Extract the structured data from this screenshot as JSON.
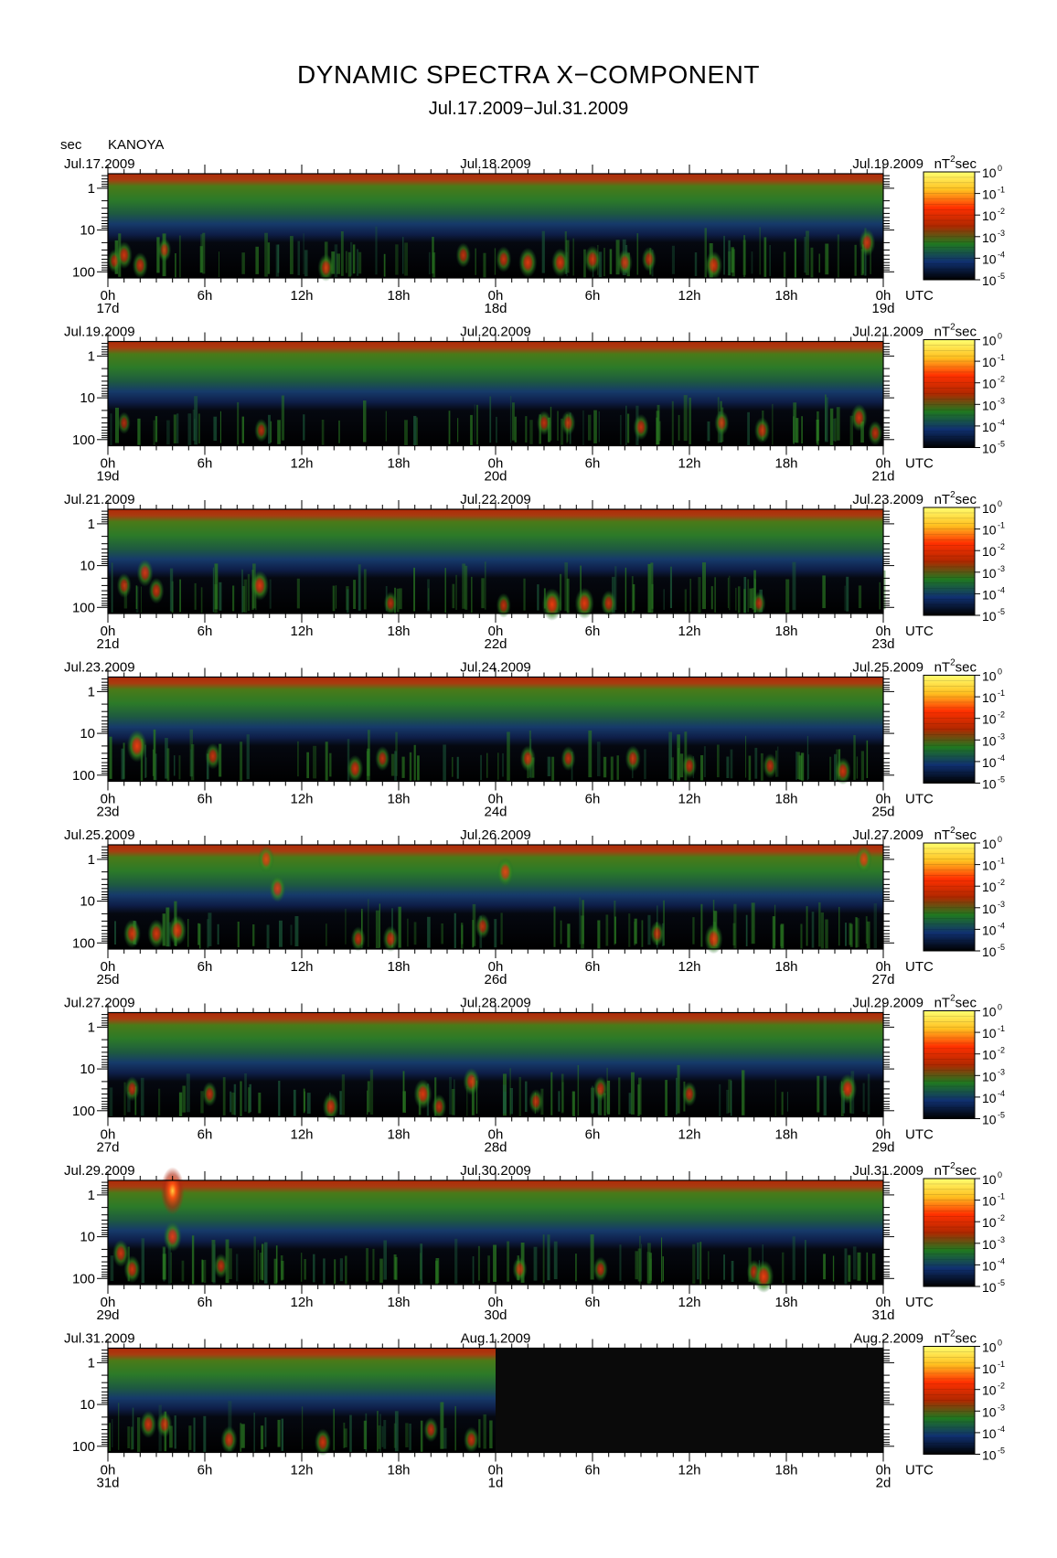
{
  "figure": {
    "title": "DYNAMIC SPECTRA X−COMPONENT",
    "subtitle": "Jul.17.2009−Jul.31.2009",
    "y_unit": "sec",
    "station": "KANOYA",
    "colorbar_unit_base": "nT",
    "colorbar_unit_exp": "2",
    "colorbar_unit_tail": "sec",
    "utc_label": "UTC"
  },
  "chart_data": {
    "type": "heatmap",
    "title": "DYNAMIC SPECTRA X−COMPONENT",
    "subtitle": "Jul.17.2009−Jul.31.2009",
    "ylabel": "sec",
    "y_scale": "log",
    "y_ticks": [
      "1",
      "10",
      "100"
    ],
    "x_ticks": [
      "0h",
      "6h",
      "12h",
      "18h",
      "0h",
      "6h",
      "12h",
      "18h",
      "0h"
    ],
    "colorbar": {
      "label": "nT²sec",
      "scale": "log",
      "ticks": [
        "10",
        "10",
        "10",
        "10",
        "10",
        "10"
      ],
      "tick_exponents": [
        "0",
        "-1",
        "-2",
        "-3",
        "-4",
        "-5"
      ],
      "colors": [
        "#ffff70",
        "#ffc020",
        "#ff3000",
        "#b02800",
        "#207820",
        "#103070",
        "#000000"
      ]
    },
    "panels": [
      {
        "left_date": "Jul.17.2009",
        "mid_date": "Jul.18.2009",
        "right_date": "Jul.19.2009",
        "day_labels": [
          "17d",
          "18d",
          "19d"
        ],
        "data_end": 1.0,
        "events": [
          [
            0.4,
            55,
            0.35
          ],
          [
            1.0,
            40,
            0.5
          ],
          [
            2.0,
            70,
            0.45
          ],
          [
            3.5,
            30,
            0.35
          ],
          [
            13.5,
            80,
            0.5
          ],
          [
            22,
            40,
            0.4
          ],
          [
            24.5,
            50,
            0.45
          ],
          [
            26,
            60,
            0.6
          ],
          [
            28,
            60,
            0.55
          ],
          [
            30,
            50,
            0.5
          ],
          [
            32,
            60,
            0.45
          ],
          [
            33.5,
            50,
            0.4
          ],
          [
            37.5,
            70,
            0.55
          ],
          [
            47,
            20,
            0.5
          ]
        ]
      },
      {
        "left_date": "Jul.19.2009",
        "mid_date": "Jul.20.2009",
        "right_date": "Jul.21.2009",
        "day_labels": [
          "19d",
          "20d",
          "21d"
        ],
        "data_end": 1.0,
        "events": [
          [
            1.0,
            40,
            0.3
          ],
          [
            9.5,
            60,
            0.35
          ],
          [
            27,
            40,
            0.4
          ],
          [
            28.5,
            40,
            0.4
          ],
          [
            33,
            50,
            0.45
          ],
          [
            38,
            40,
            0.4
          ],
          [
            40.5,
            60,
            0.45
          ],
          [
            46.5,
            30,
            0.5
          ],
          [
            47.5,
            70,
            0.4
          ]
        ]
      },
      {
        "left_date": "Jul.21.2009",
        "mid_date": "Jul.22.2009",
        "right_date": "Jul.23.2009",
        "day_labels": [
          "21d",
          "22d",
          "23d"
        ],
        "data_end": 1.0,
        "events": [
          [
            1.0,
            30,
            0.4
          ],
          [
            2.3,
            15,
            0.5
          ],
          [
            3.0,
            40,
            0.45
          ],
          [
            9.4,
            30,
            0.6
          ],
          [
            17.5,
            80,
            0.35
          ],
          [
            24.5,
            90,
            0.4
          ],
          [
            27.5,
            85,
            0.7
          ],
          [
            29.5,
            80,
            0.65
          ],
          [
            31.0,
            80,
            0.45
          ],
          [
            40.3,
            80,
            0.35
          ]
        ]
      },
      {
        "left_date": "Jul.23.2009",
        "mid_date": "Jul.24.2009",
        "right_date": "Jul.25.2009",
        "day_labels": [
          "23d",
          "24d",
          "25d"
        ],
        "data_end": 1.0,
        "events": [
          [
            1.8,
            20,
            0.7
          ],
          [
            6.5,
            35,
            0.45
          ],
          [
            15.3,
            70,
            0.5
          ],
          [
            17.0,
            40,
            0.4
          ],
          [
            26,
            40,
            0.45
          ],
          [
            28.5,
            40,
            0.4
          ],
          [
            32.5,
            40,
            0.45
          ],
          [
            36,
            60,
            0.4
          ],
          [
            41,
            60,
            0.4
          ],
          [
            45.5,
            80,
            0.5
          ]
        ]
      },
      {
        "left_date": "Jul.25.2009",
        "mid_date": "Jul.26.2009",
        "right_date": "Jul.27.2009",
        "day_labels": [
          "25d",
          "26d",
          "27d"
        ],
        "data_end": 1.0,
        "events": [
          [
            1.5,
            60,
            0.55
          ],
          [
            3.0,
            60,
            0.55
          ],
          [
            4.3,
            50,
            0.6
          ],
          [
            9.8,
            1,
            0.5
          ],
          [
            10.5,
            5,
            0.5
          ],
          [
            15.5,
            80,
            0.4
          ],
          [
            17.5,
            80,
            0.45
          ],
          [
            23.2,
            40,
            0.4
          ],
          [
            24.6,
            2,
            0.55
          ],
          [
            34,
            60,
            0.4
          ],
          [
            37.5,
            80,
            0.6
          ],
          [
            46.8,
            1,
            0.5
          ]
        ]
      },
      {
        "left_date": "Jul.27.2009",
        "mid_date": "Jul.28.2009",
        "right_date": "Jul.29.2009",
        "day_labels": [
          "27d",
          "28d",
          "29d"
        ],
        "data_end": 1.0,
        "events": [
          [
            1.5,
            30,
            0.4
          ],
          [
            6.3,
            40,
            0.4
          ],
          [
            13.8,
            80,
            0.5
          ],
          [
            19.5,
            40,
            0.6
          ],
          [
            20.5,
            80,
            0.4
          ],
          [
            22.5,
            20,
            0.5
          ],
          [
            26.5,
            60,
            0.4
          ],
          [
            30.5,
            30,
            0.4
          ],
          [
            36,
            40,
            0.4
          ],
          [
            45.8,
            30,
            0.6
          ]
        ]
      },
      {
        "left_date": "Jul.29.2009",
        "mid_date": "Jul.30.2009",
        "right_date": "Jul.31.2009",
        "day_labels": [
          "29d",
          "30d",
          "31d"
        ],
        "data_end": 1.0,
        "events": [
          [
            0.8,
            25,
            0.5
          ],
          [
            1.5,
            60,
            0.5
          ],
          [
            4.0,
            0.8,
            0.9
          ],
          [
            4.0,
            10,
            0.6
          ],
          [
            7.0,
            50,
            0.4
          ],
          [
            25.5,
            60,
            0.4
          ],
          [
            30.5,
            60,
            0.4
          ],
          [
            40.0,
            70,
            0.4
          ],
          [
            40.6,
            90,
            0.7
          ]
        ]
      },
      {
        "left_date": "Jul.31.2009",
        "mid_date": "Aug.1.2009",
        "right_date": "Aug.2.2009",
        "day_labels": [
          "31d",
          "1d",
          "2d"
        ],
        "data_end": 0.5,
        "events": [
          [
            2.5,
            30,
            0.5
          ],
          [
            3.5,
            30,
            0.45
          ],
          [
            7.5,
            70,
            0.5
          ],
          [
            13.3,
            80,
            0.5
          ],
          [
            20.0,
            40,
            0.4
          ],
          [
            22.5,
            70,
            0.45
          ]
        ]
      }
    ]
  }
}
